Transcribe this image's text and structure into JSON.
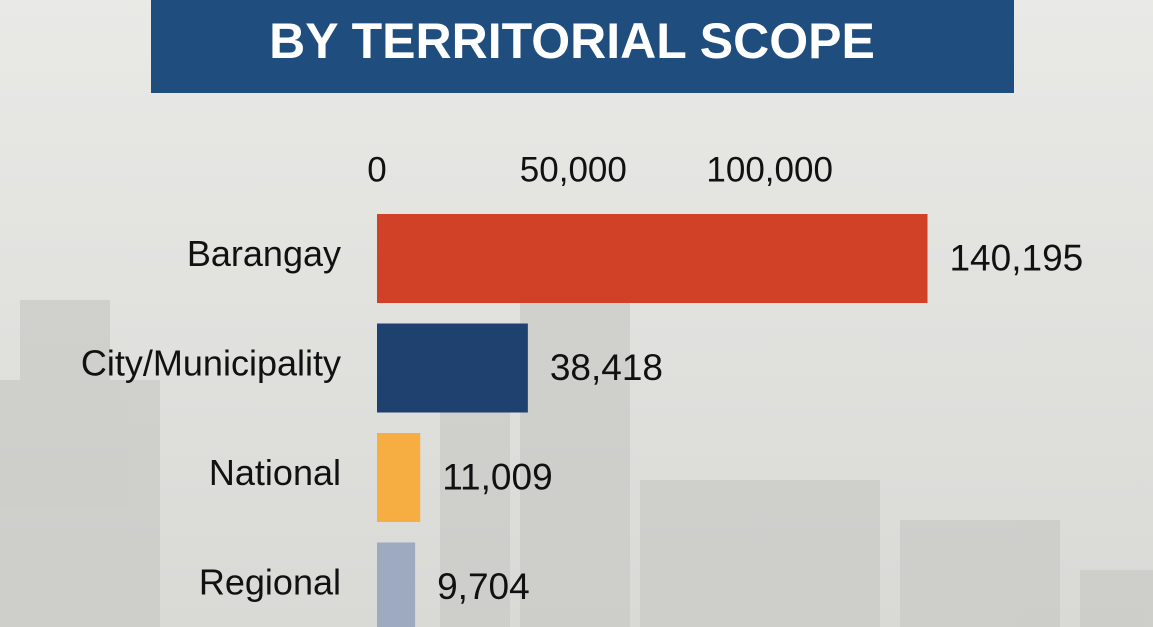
{
  "chart_data": {
    "type": "bar",
    "orientation": "horizontal",
    "title": "BY TERRITORIAL SCOPE",
    "categories": [
      "Barangay",
      "City/Municipality",
      "National",
      "Regional"
    ],
    "values": [
      140195,
      38418,
      11009,
      9704
    ],
    "value_labels": [
      "140,195",
      "38,418",
      "11,009",
      "9,704"
    ],
    "colors": [
      "#d04127",
      "#1f416f",
      "#f6ae42",
      "#9eaabf"
    ],
    "xlim": [
      0,
      150000
    ],
    "xticks": [
      0,
      {
        "value": 50000,
        "label": "50,000"
      },
      {
        "value": 100000,
        "label": "100,000"
      }
    ],
    "grid": false
  }
}
